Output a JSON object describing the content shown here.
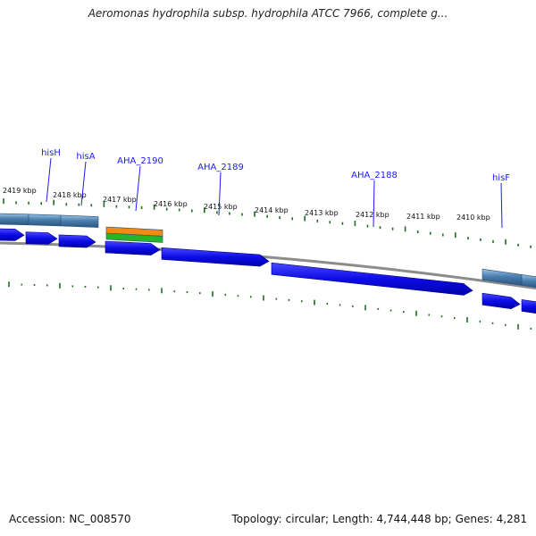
{
  "title": "Aeromonas hydrophila subsp. hydrophila ATCC 7966, complete g...",
  "footer": {
    "accession_label": "Accession:",
    "accession": "NC_008570",
    "topology_label": "Topology:",
    "topology": "circular;",
    "length_label": "Length:",
    "length": "4,744,448 bp;",
    "genes_label": "Genes:",
    "genes": "4,281"
  },
  "scale_labels": [
    "2419 kbp",
    "2418 kbp",
    "2417 kbp",
    "2416 kbp",
    "2415 kbp",
    "2414 kbp",
    "2413 kbp",
    "2412 kbp",
    "2411 kbp",
    "2410 kbp"
  ],
  "gene_labels": [
    "hisH",
    "hisA",
    "AHA_2190",
    "AHA_2189",
    "AHA_2188",
    "hisF"
  ],
  "colors": {
    "cds_arrow": "#1010e6",
    "gene_bar": "#4a7fae",
    "rna_orange": "#f08a10",
    "rna_green": "#28b428",
    "backbone": "#8c8c8c",
    "tick": "#207020",
    "label_blue": "#1a1aff"
  }
}
